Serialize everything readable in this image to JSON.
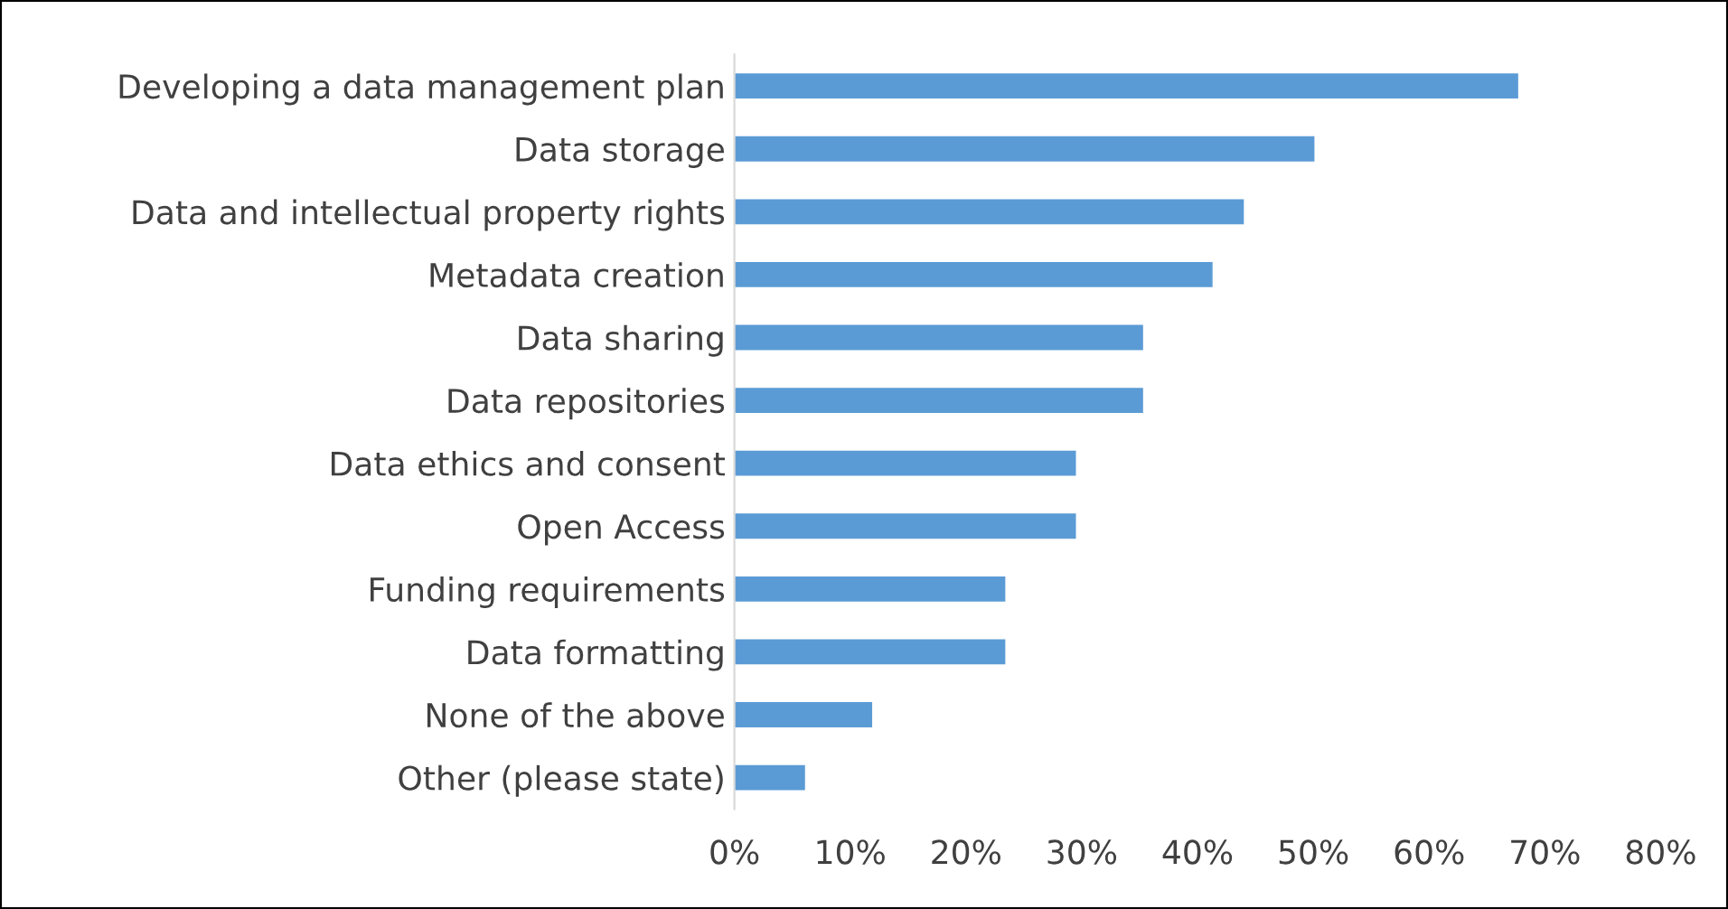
{
  "chart_data": {
    "type": "bar",
    "orientation": "horizontal",
    "categories": [
      "Developing a data management plan",
      "Data storage",
      "Data and intellectual property rights",
      "Metadata creation",
      "Data sharing",
      "Data repositories",
      "Data ethics and consent",
      "Open Access",
      "Funding requirements",
      "Data formatting",
      "None of the above",
      "Other (please state)"
    ],
    "values": [
      67.7,
      50.1,
      44.0,
      41.3,
      35.3,
      35.3,
      29.5,
      29.5,
      23.4,
      23.4,
      11.9,
      6.1
    ],
    "color": "#5b9bd5",
    "xlim": [
      0,
      80
    ],
    "xticks": [
      {
        "value": 0,
        "label": "0%"
      },
      {
        "value": 10,
        "label": "10%"
      },
      {
        "value": 20,
        "label": "20%"
      },
      {
        "value": 30,
        "label": "30%"
      },
      {
        "value": 40,
        "label": "40%"
      },
      {
        "value": 50,
        "label": "50%"
      },
      {
        "value": 60,
        "label": "60%"
      },
      {
        "value": 70,
        "label": "70%"
      },
      {
        "value": 80,
        "label": "80%"
      }
    ],
    "grid": false,
    "legend": false
  }
}
